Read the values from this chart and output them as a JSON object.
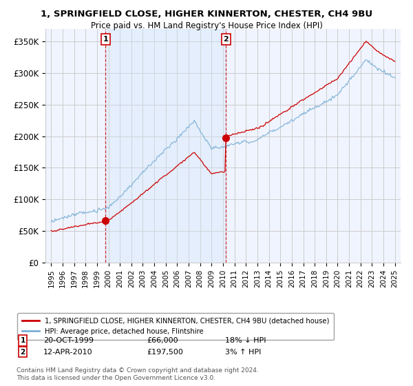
{
  "title_line1": "1, SPRINGFIELD CLOSE, HIGHER KINNERTON, CHESTER, CH4 9BU",
  "title_line2": "Price paid vs. HM Land Registry's House Price Index (HPI)",
  "ylim": [
    0,
    370000
  ],
  "yticks": [
    0,
    50000,
    100000,
    150000,
    200000,
    250000,
    300000,
    350000
  ],
  "ytick_labels": [
    "£0",
    "£50K",
    "£100K",
    "£150K",
    "£200K",
    "£250K",
    "£300K",
    "£350K"
  ],
  "background_color": "#ffffff",
  "plot_bg_color": "#f0f4ff",
  "grid_color": "#cccccc",
  "shade_color": "#d0e4f7",
  "purchase1_year": 1999,
  "purchase1_month": 10,
  "purchase1_price": 66000,
  "purchase1_label": "1",
  "purchase2_year": 2010,
  "purchase2_month": 4,
  "purchase2_price": 197500,
  "purchase2_label": "2",
  "red_line_color": "#cc0000",
  "blue_line_color": "#7ab0d4",
  "annotation1_date_str": "20-OCT-1999",
  "annotation1_price_str": "£66,000",
  "annotation1_hpi_str": "18% ↓ HPI",
  "annotation2_date_str": "12-APR-2010",
  "annotation2_price_str": "£197,500",
  "annotation2_hpi_str": "3% ↑ HPI",
  "legend_label_red": "1, SPRINGFIELD CLOSE, HIGHER KINNERTON, CHESTER, CH4 9BU (detached house)",
  "legend_label_blue": "HPI: Average price, detached house, Flintshire",
  "footer_text": "Contains HM Land Registry data © Crown copyright and database right 2024.\nThis data is licensed under the Open Government Licence v3.0."
}
